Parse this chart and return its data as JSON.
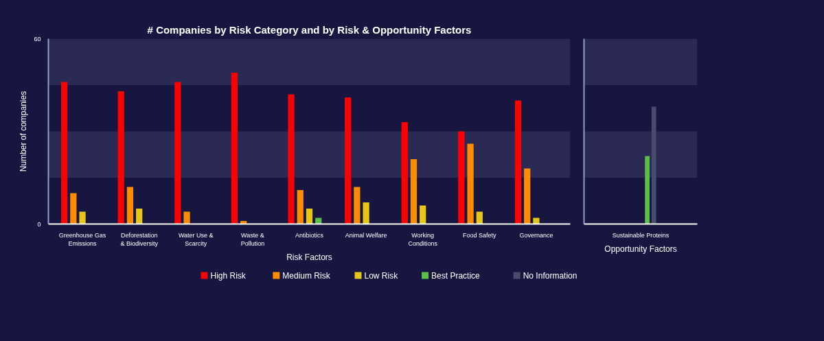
{
  "chart_data": [
    {
      "type": "bar",
      "title": "# Companies by Risk Category and by Risk & Opportunity Factors",
      "xlabel": "Risk Factors",
      "ylabel": "Number of companies",
      "categories": [
        "Greenhouse Gas Emissions",
        "Deforestation & Biodiversity",
        "Water Use & Scarcity",
        "Waste & Pollution",
        "Antibiotics",
        "Animal Welfare",
        "Working Conditions",
        "Food Safety",
        "Governance"
      ],
      "series": [
        {
          "name": "High Risk",
          "color": "#ff0000",
          "values": [
            46,
            43,
            46,
            49,
            42,
            41,
            33,
            30,
            40
          ]
        },
        {
          "name": "Medium Risk",
          "color": "#ff8c00",
          "values": [
            10,
            12,
            4,
            1,
            11,
            12,
            21,
            26,
            18
          ]
        },
        {
          "name": "Low Risk",
          "color": "#e6c619",
          "values": [
            4,
            5,
            0,
            0,
            5,
            7,
            6,
            4,
            2
          ]
        },
        {
          "name": "Best Practice",
          "color": "#5cbf4a",
          "values": [
            0,
            0,
            0,
            0,
            2,
            0,
            0,
            0,
            0
          ]
        },
        {
          "name": "No Information",
          "color": "#4a4a6e",
          "values": [
            0,
            0,
            0,
            0,
            0,
            0,
            0,
            0,
            0
          ]
        }
      ],
      "ylim": [
        0,
        60
      ],
      "yticks": [
        0,
        60
      ],
      "grid": false,
      "legend": "bottom",
      "bands": [
        {
          "axis": "y",
          "from": 15,
          "to": 30,
          "color": "#2a2a55"
        },
        {
          "axis": "y",
          "from": 45,
          "to": 60,
          "color": "#2a2a55"
        }
      ]
    },
    {
      "type": "bar",
      "xlabel": "Opportunity Factors",
      "categories": [
        "Sustainable Proteins"
      ],
      "series": [
        {
          "color": "#ff0000",
          "values": [
            0
          ]
        },
        {
          "color": "#ff8c00",
          "values": [
            0
          ]
        },
        {
          "color": "#e6c619",
          "values": [
            0
          ]
        },
        {
          "color": "#5cbf4a",
          "values": [
            22
          ]
        },
        {
          "color": "#4a4a6e",
          "values": [
            38
          ]
        }
      ],
      "ylim": [
        0,
        60
      ],
      "yticks": [
        0,
        60
      ],
      "grid": false,
      "tick_labels": "x",
      "bands": [
        {
          "axis": "y",
          "from": 15,
          "to": 30,
          "color": "#2a2a55"
        },
        {
          "axis": "y",
          "from": 45,
          "to": 60,
          "color": "#2a2a55"
        }
      ]
    }
  ]
}
